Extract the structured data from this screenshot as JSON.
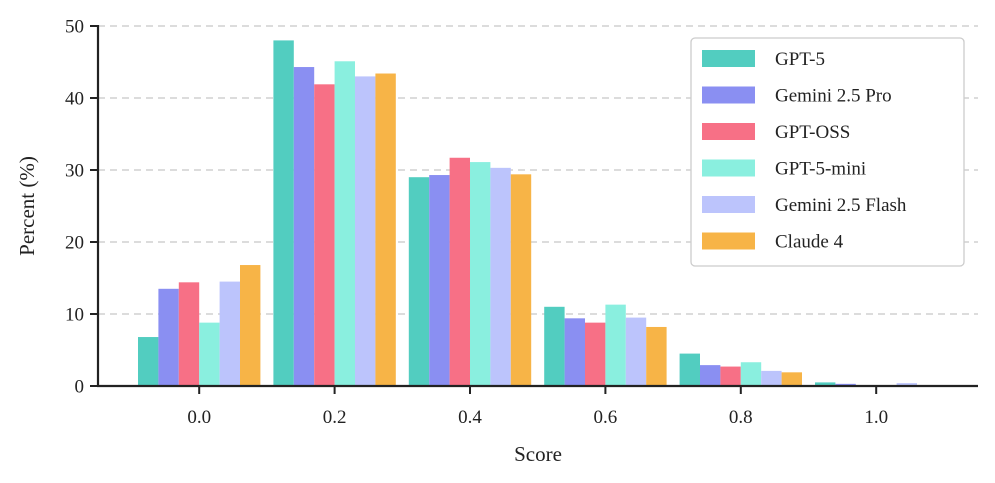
{
  "chart_data": {
    "type": "bar",
    "title": "",
    "xlabel": "Score",
    "ylabel": "Percent (%)",
    "categories": [
      "0.0",
      "0.2",
      "0.4",
      "0.6",
      "0.8",
      "1.0"
    ],
    "ylim": [
      0,
      50
    ],
    "yticks": [
      "0",
      "10",
      "20",
      "30",
      "40",
      "50"
    ],
    "grid": "y-dashed",
    "legend_position": "top-right",
    "series": [
      {
        "name": "GPT-5",
        "color": "#52cdc0",
        "values": [
          6.8,
          48.0,
          29.0,
          11.0,
          4.5,
          0.5
        ]
      },
      {
        "name": "Gemini 2.5 Pro",
        "color": "#8a8ff2",
        "values": [
          13.5,
          44.3,
          29.3,
          9.4,
          2.9,
          0.3
        ]
      },
      {
        "name": "GPT-OSS",
        "color": "#f77086",
        "values": [
          14.4,
          41.9,
          31.7,
          8.8,
          2.7,
          0.1
        ]
      },
      {
        "name": "GPT-5-mini",
        "color": "#8aefdf",
        "values": [
          8.8,
          45.1,
          31.1,
          11.3,
          3.3,
          0.1
        ]
      },
      {
        "name": "Gemini 2.5 Flash",
        "color": "#bcc4fc",
        "values": [
          14.5,
          43.0,
          30.3,
          9.5,
          2.1,
          0.4
        ]
      },
      {
        "name": "Claude 4",
        "color": "#f7b447",
        "values": [
          16.8,
          43.4,
          29.4,
          8.2,
          1.9,
          0.1
        ]
      }
    ]
  }
}
